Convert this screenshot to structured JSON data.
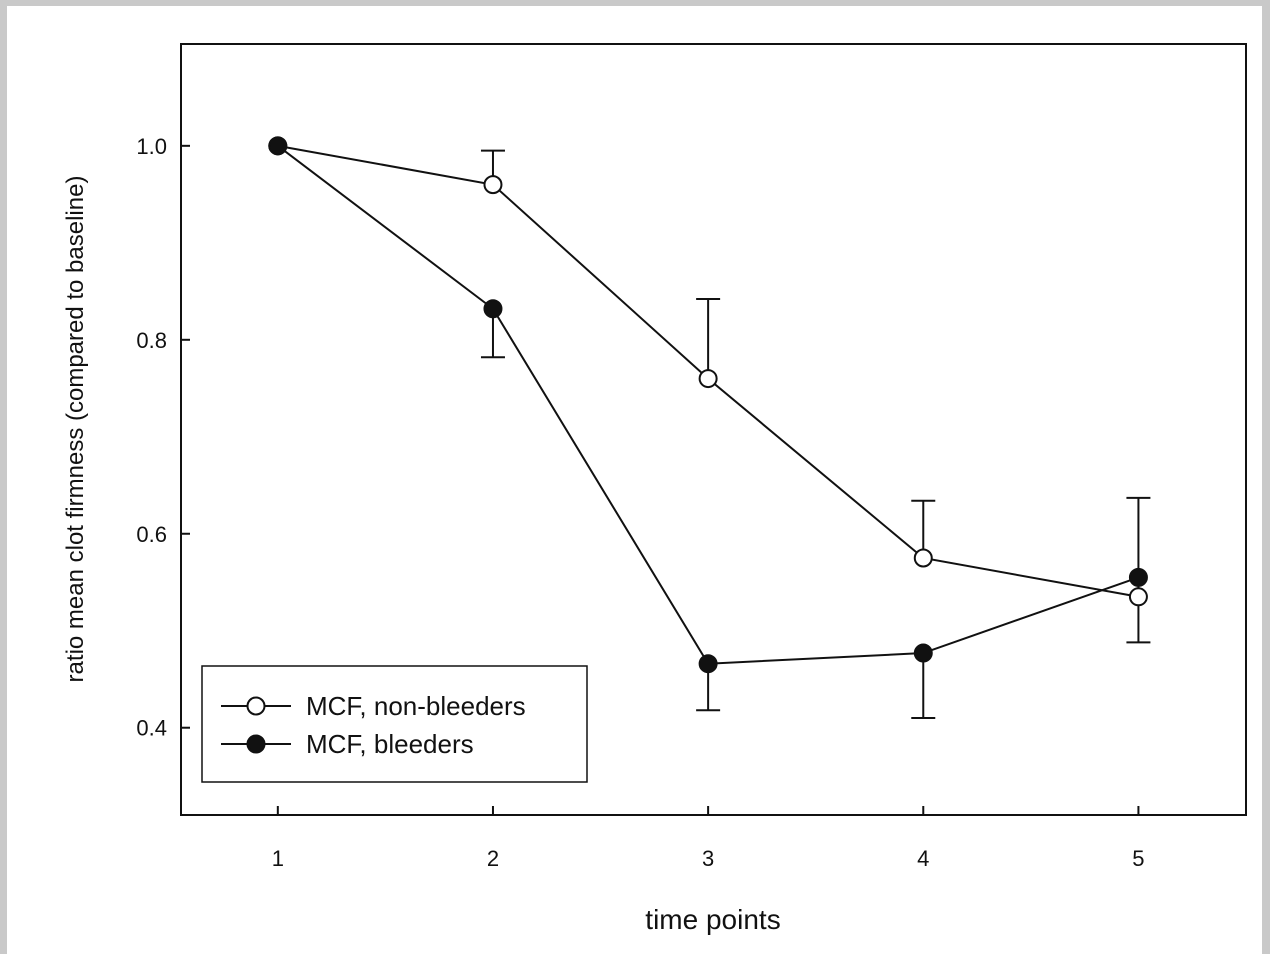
{
  "colors": {
    "frame_border": "#c9c9c9",
    "ink": "#111111",
    "background": "#ffffff"
  },
  "chart_data": {
    "type": "line",
    "title": "",
    "xlabel": "time points",
    "ylabel": "ratio mean clot firmness (compared to baseline)",
    "x": [
      1,
      2,
      3,
      4,
      5
    ],
    "xlim": [
      0.55,
      5.5
    ],
    "ylim": [
      0.31,
      1.105
    ],
    "x_ticks": [
      "1",
      "2",
      "3",
      "4",
      "5"
    ],
    "y_ticks": [
      "0.4",
      "0.6",
      "0.8",
      "1.0"
    ],
    "y_tick_values": [
      0.4,
      0.6,
      0.8,
      1.0
    ],
    "grid": false,
    "legend_position": "bottom-left",
    "series": [
      {
        "name": "MCF, non-bleeders",
        "marker": "open-circle",
        "values": [
          1.0,
          0.96,
          0.76,
          0.575,
          0.535
        ],
        "error_upper": [
          null,
          0.995,
          0.842,
          0.634,
          0.637
        ],
        "error_lower": [
          null,
          null,
          null,
          null,
          null
        ]
      },
      {
        "name": "MCF, bleeders",
        "marker": "filled-circle",
        "values": [
          1.0,
          0.832,
          0.466,
          0.477,
          0.555
        ],
        "error_upper": [
          null,
          null,
          null,
          null,
          null
        ],
        "error_lower": [
          null,
          0.782,
          0.418,
          0.41,
          0.488
        ]
      }
    ]
  }
}
